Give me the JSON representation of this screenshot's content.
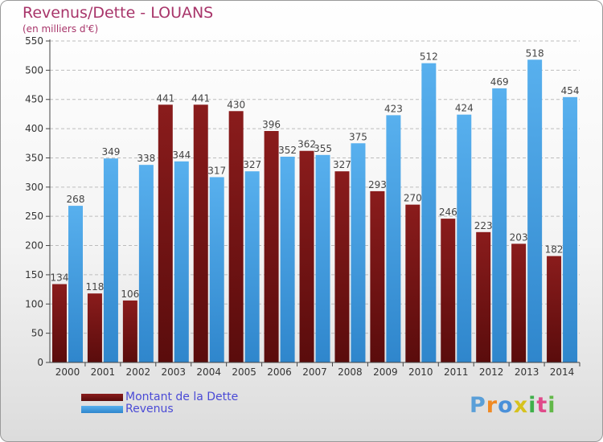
{
  "chart_data": {
    "type": "bar",
    "title": "Revenus/Dette - LOUANS",
    "subtitle": "(en milliers d'€)",
    "categories": [
      "2000",
      "2001",
      "2002",
      "2003",
      "2004",
      "2005",
      "2006",
      "2007",
      "2008",
      "2009",
      "2010",
      "2011",
      "2012",
      "2013",
      "2014"
    ],
    "series": [
      {
        "name": "Montant de la Dette",
        "values": [
          134,
          118,
          106,
          441,
          441,
          430,
          396,
          362,
          327,
          293,
          270,
          246,
          223,
          203,
          182
        ]
      },
      {
        "name": "Revenus",
        "values": [
          268,
          349,
          338,
          344,
          317,
          327,
          352,
          355,
          375,
          423,
          512,
          424,
          469,
          518,
          454
        ]
      }
    ],
    "ylim": [
      0,
      550
    ],
    "yticks": [
      0,
      50,
      100,
      150,
      200,
      250,
      300,
      350,
      400,
      450,
      500,
      550
    ],
    "grid": true,
    "legend_position": "bottom-left"
  },
  "legend": {
    "debt_label": "Montant de la Dette",
    "revenue_label": "Revenus"
  },
  "brand": {
    "logo_text": "Proxiti",
    "letter_colors": [
      "#5a9fd8",
      "#f08a24",
      "#4a90d9",
      "#d6c21e",
      "#3fb04a",
      "#e04a8a",
      "#62b848"
    ]
  },
  "colors": {
    "title": "#a8356a",
    "debt_bar": "#7a1515",
    "revenue_bar": "#4aa3e6",
    "legend_text": "#4a4ad6"
  }
}
